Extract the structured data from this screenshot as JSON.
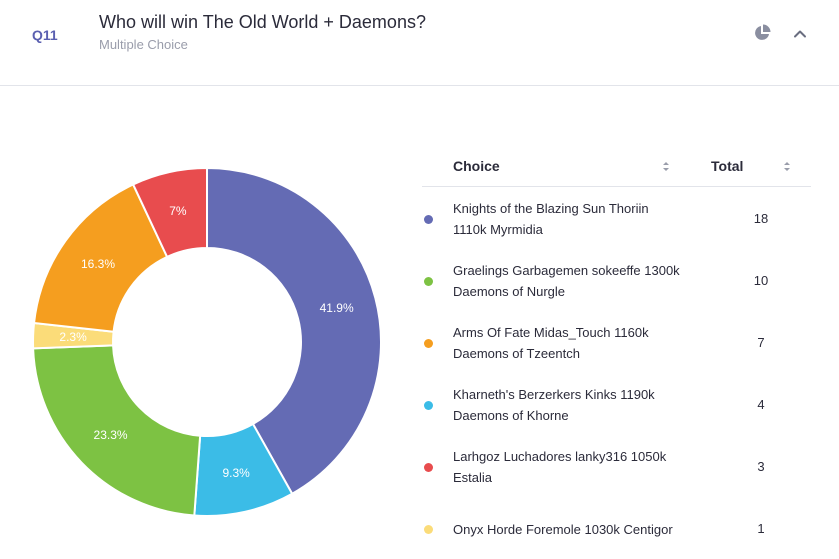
{
  "question": {
    "number": "Q11",
    "title": "Who will win The Old World + Daemons?",
    "subtitle": "Multiple Choice"
  },
  "icons": {
    "chart_toggle": "pie-chart-icon",
    "collapse": "chevron-up-icon"
  },
  "table": {
    "choice_header": "Choice",
    "total_header": "Total"
  },
  "chart_data": {
    "type": "pie",
    "donut": true,
    "slices": [
      {
        "label": "Knights of the Blazing Sun Thoriin 1110k Myrmidia",
        "value": 18,
        "percent_label": "41.9%",
        "color": "#646bb4"
      },
      {
        "label": "Kharneth's Berzerkers Kinks 1190k Daemons of Khorne",
        "value": 4,
        "percent_label": "9.3%",
        "color": "#3bbce7"
      },
      {
        "label": "Graelings Garbagemen sokeeffe 1300k Daemons of Nurgle",
        "value": 10,
        "percent_label": "23.3%",
        "color": "#7dc243"
      },
      {
        "label": "Onyx Horde Foremole 1030k Centigor",
        "value": 1,
        "percent_label": "2.3%",
        "color": "#fbdc79"
      },
      {
        "label": "Arms Of Fate Midas_Touch 1160k Daemons of Tzeentch",
        "value": 7,
        "percent_label": "16.3%",
        "color": "#f59e1f"
      },
      {
        "label": "Larhgoz Luchadores lanky316 1050k Estalia",
        "value": 3,
        "percent_label": "7%",
        "color": "#e84c4e"
      }
    ],
    "rows": [
      {
        "line1": "Knights of the Blazing Sun Thoriin",
        "line2": "1110k Myrmidia",
        "total": "18",
        "color": "#646bb4"
      },
      {
        "line1": "Graelings Garbagemen sokeeffe 1300k",
        "line2": "Daemons of Nurgle",
        "total": "10",
        "color": "#7dc243"
      },
      {
        "line1": "Arms Of Fate Midas_Touch 1160k",
        "line2": "Daemons of Tzeentch",
        "total": "7",
        "color": "#f59e1f"
      },
      {
        "line1": "Kharneth's Berzerkers Kinks 1190k",
        "line2": "Daemons of Khorne",
        "total": "4",
        "color": "#3bbce7"
      },
      {
        "line1": "Larhgoz Luchadores lanky316 1050k",
        "line2": "Estalia",
        "total": "3",
        "color": "#e84c4e"
      },
      {
        "line1": "Onyx Horde Foremole 1030k Centigor",
        "line2": "",
        "total": "1",
        "color": "#fbdc79"
      }
    ]
  }
}
